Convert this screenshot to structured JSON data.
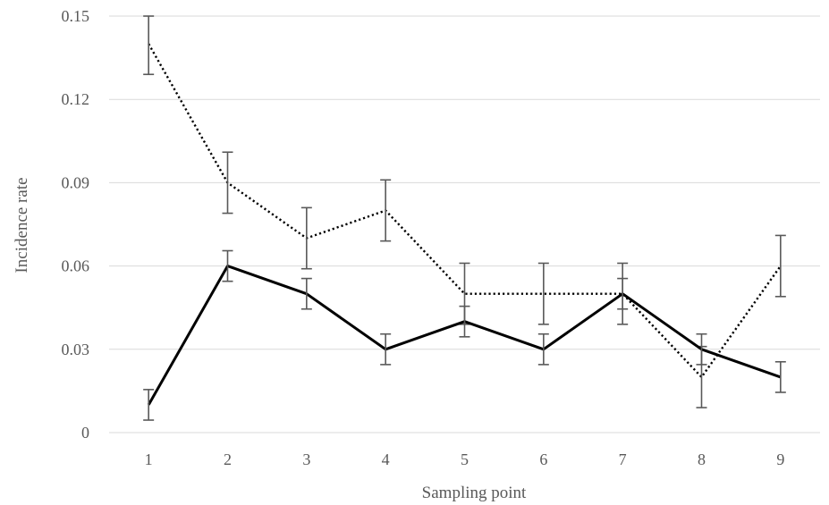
{
  "chart_data": {
    "type": "line",
    "title": "",
    "xlabel": "Sampling point",
    "ylabel": "Incidence rate",
    "x": [
      1,
      2,
      3,
      4,
      5,
      6,
      7,
      8,
      9
    ],
    "x_tick_labels": [
      "1",
      "2",
      "3",
      "4",
      "5",
      "6",
      "7",
      "8",
      "9"
    ],
    "ylim": [
      0,
      0.15
    ],
    "y_ticks": [
      0,
      0.03,
      0.06,
      0.09,
      0.12,
      0.15
    ],
    "y_tick_labels": [
      "0",
      "0.03",
      "0.06",
      "0.09",
      "0.12",
      "0.15"
    ],
    "grid": "horizontal",
    "legend": "none",
    "series": [
      {
        "line_style": "dotted",
        "color": "#000000",
        "values": [
          0.14,
          0.09,
          0.07,
          0.08,
          0.05,
          0.05,
          0.05,
          0.02,
          0.06
        ],
        "error": [
          0.011,
          0.011,
          0.011,
          0.011,
          0.011,
          0.011,
          0.011,
          0.011,
          0.011
        ]
      },
      {
        "line_style": "solid",
        "color": "#000000",
        "values": [
          0.01,
          0.06,
          0.05,
          0.03,
          0.04,
          0.03,
          0.05,
          0.03,
          0.02
        ],
        "error": [
          0.0055,
          0.0055,
          0.0055,
          0.0055,
          0.0055,
          0.0055,
          0.0055,
          0.0055,
          0.0055
        ]
      }
    ]
  }
}
